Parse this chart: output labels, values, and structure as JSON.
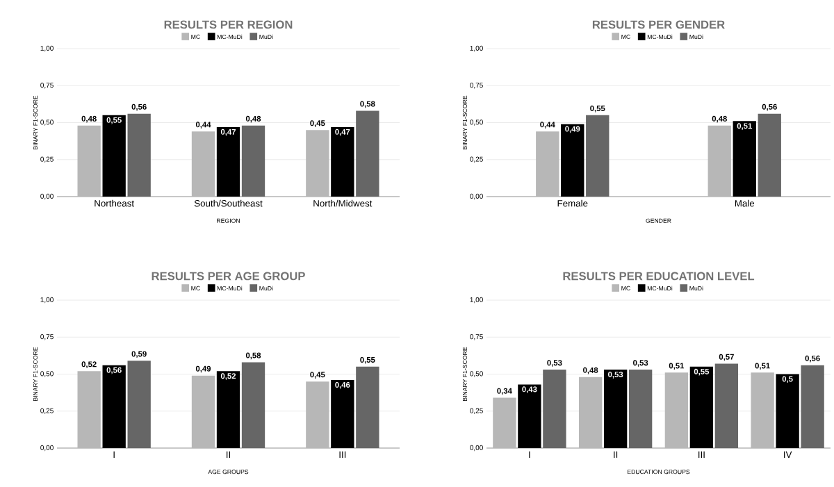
{
  "chart_data": [
    {
      "type": "bar",
      "title": "RESULTS PER REGION",
      "xlabel": "REGION",
      "ylabel": "BINARY F1-SCORE",
      "categories": [
        "Northeast",
        "South/Southeast",
        "North/Midwest"
      ],
      "series": [
        {
          "name": "MC",
          "color": "#b7b7b7",
          "values": [
            0.48,
            0.44,
            0.45
          ],
          "value_labels": [
            "0,48",
            "0,44",
            "0,45"
          ]
        },
        {
          "name": "MC-MuDi",
          "color": "#000000",
          "values": [
            0.55,
            0.47,
            0.47
          ],
          "value_labels": [
            "0,55",
            "0,47",
            "0,47"
          ]
        },
        {
          "name": "MuDi",
          "color": "#666666",
          "values": [
            0.56,
            0.48,
            0.58
          ],
          "value_labels": [
            "0,56",
            "0,48",
            "0,58"
          ]
        }
      ],
      "ylim": [
        0,
        1
      ],
      "yticks": [
        {
          "value": 0,
          "label": "0,00"
        },
        {
          "value": 0.25,
          "label": "0,25"
        },
        {
          "value": 0.5,
          "label": "0,50"
        },
        {
          "value": 0.75,
          "label": "0,75"
        },
        {
          "value": 1,
          "label": "1,00"
        }
      ],
      "grid": "y",
      "legend": "top"
    },
    {
      "type": "bar",
      "title": "RESULTS PER GENDER",
      "xlabel": "GENDER",
      "ylabel": "BINARY F1-SCORE",
      "categories": [
        "Female",
        "Male"
      ],
      "series": [
        {
          "name": "MC",
          "color": "#b7b7b7",
          "values": [
            0.44,
            0.48
          ],
          "value_labels": [
            "0,44",
            "0,48"
          ]
        },
        {
          "name": "MC-MuDi",
          "color": "#000000",
          "values": [
            0.49,
            0.51
          ],
          "value_labels": [
            "0,49",
            "0,51"
          ]
        },
        {
          "name": "MuDi",
          "color": "#666666",
          "values": [
            0.55,
            0.56
          ],
          "value_labels": [
            "0,55",
            "0,56"
          ]
        }
      ],
      "ylim": [
        0,
        1
      ],
      "yticks": [
        {
          "value": 0,
          "label": "0,00"
        },
        {
          "value": 0.25,
          "label": "0,25"
        },
        {
          "value": 0.5,
          "label": "0,50"
        },
        {
          "value": 0.75,
          "label": "0,75"
        },
        {
          "value": 1,
          "label": "1,00"
        }
      ],
      "grid": "y",
      "legend": "top"
    },
    {
      "type": "bar",
      "title": "RESULTS PER AGE GROUP",
      "xlabel": "AGE GROUPS",
      "ylabel": "BINARY F1-SCORE",
      "categories": [
        "I",
        "II",
        "III"
      ],
      "series": [
        {
          "name": "MC",
          "color": "#b7b7b7",
          "values": [
            0.52,
            0.49,
            0.45
          ],
          "value_labels": [
            "0,52",
            "0,49",
            "0,45"
          ]
        },
        {
          "name": "MC-MuDi",
          "color": "#000000",
          "values": [
            0.56,
            0.52,
            0.46
          ],
          "value_labels": [
            "0,56",
            "0,52",
            "0,46"
          ]
        },
        {
          "name": "MuDi",
          "color": "#666666",
          "values": [
            0.59,
            0.58,
            0.55
          ],
          "value_labels": [
            "0,59",
            "0,58",
            "0,55"
          ]
        }
      ],
      "ylim": [
        0,
        1
      ],
      "yticks": [
        {
          "value": 0,
          "label": "0,00"
        },
        {
          "value": 0.25,
          "label": "0,25"
        },
        {
          "value": 0.5,
          "label": "0,50"
        },
        {
          "value": 0.75,
          "label": "0,75"
        },
        {
          "value": 1,
          "label": "1,00"
        }
      ],
      "grid": "y",
      "legend": "top"
    },
    {
      "type": "bar",
      "title": "RESULTS PER EDUCATION LEVEL",
      "xlabel": "EDUCATION GROUPS",
      "ylabel": "BINARY F1-SCORE",
      "categories": [
        "I",
        "II",
        "III",
        "IV"
      ],
      "series": [
        {
          "name": "MC",
          "color": "#b7b7b7",
          "values": [
            0.34,
            0.48,
            0.51,
            0.51
          ],
          "value_labels": [
            "0,34",
            "0,48",
            "0,51",
            "0,51"
          ]
        },
        {
          "name": "MC-MuDi",
          "color": "#000000",
          "values": [
            0.43,
            0.53,
            0.55,
            0.5
          ],
          "value_labels": [
            "0,43",
            "0,53",
            "0,55",
            "0,5"
          ]
        },
        {
          "name": "MuDi",
          "color": "#666666",
          "values": [
            0.53,
            0.53,
            0.57,
            0.56
          ],
          "value_labels": [
            "0,53",
            "0,53",
            "0,57",
            "0,56"
          ]
        }
      ],
      "ylim": [
        0,
        1
      ],
      "yticks": [
        {
          "value": 0,
          "label": "0,00"
        },
        {
          "value": 0.25,
          "label": "0,25"
        },
        {
          "value": 0.5,
          "label": "0,50"
        },
        {
          "value": 0.75,
          "label": "0,75"
        },
        {
          "value": 1,
          "label": "1,00"
        }
      ],
      "grid": "y",
      "legend": "top"
    }
  ]
}
